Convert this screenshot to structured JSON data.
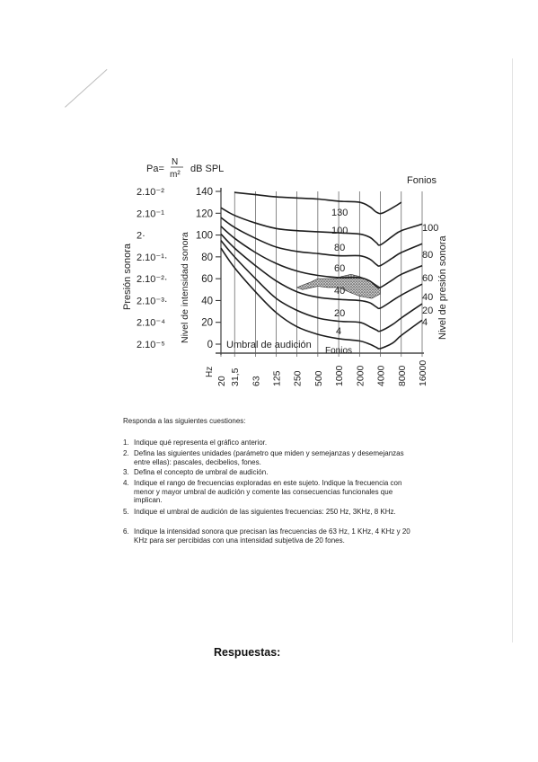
{
  "chart_data": {
    "type": "line",
    "units_label": {
      "pa": "Pa=",
      "n": "N",
      "m2": "m²",
      "dbspl": "dB SPL"
    },
    "left_axis_title": "Presión sonora",
    "left_pressure_ticks": [
      "2.10⁻²",
      "2.10⁻¹",
      "2·",
      "2.10⁻¹·",
      "2.10⁻²·",
      "2.10⁻³·",
      "2.10⁻⁴",
      "2.10⁻⁵"
    ],
    "ylabel": "Nivel de intensidad sonora",
    "y_ticks": [
      "140",
      "120",
      "100",
      "80",
      "60",
      "40",
      "20",
      "0"
    ],
    "ylim": [
      0,
      140
    ],
    "right_axis_title": "Nivel de presión sonora",
    "right_ticks": [
      "100",
      "80",
      "60",
      "40",
      "20",
      "4"
    ],
    "fonios_title": "Fonios",
    "x_unit": "Hz",
    "x_ticks": [
      "20",
      "31,5",
      "63",
      "125",
      "250",
      "500",
      "1000",
      "2000",
      "4000",
      "8000",
      "16000"
    ],
    "x_scale": "log",
    "contour_labels": [
      "130",
      "100",
      "80",
      "60",
      "40",
      "20",
      "4"
    ],
    "threshold_label": "Umbral de audición",
    "bottom_label": "Fonios",
    "speech_region": "stippled",
    "series": [
      {
        "label": "130",
        "points": [
          [
            31.5,
            139
          ],
          [
            63,
            137
          ],
          [
            125,
            135
          ],
          [
            250,
            134
          ],
          [
            500,
            133
          ],
          [
            1000,
            131
          ],
          [
            2000,
            130
          ],
          [
            2800,
            126
          ],
          [
            3500,
            121
          ],
          [
            4200,
            120
          ],
          [
            6000,
            125
          ],
          [
            8000,
            130
          ]
        ]
      },
      {
        "label": "100",
        "points": [
          [
            20,
            125
          ],
          [
            31.5,
            118
          ],
          [
            63,
            111
          ],
          [
            125,
            106
          ],
          [
            250,
            104
          ],
          [
            500,
            103
          ],
          [
            1000,
            102
          ],
          [
            2000,
            101
          ],
          [
            2800,
            98
          ],
          [
            3500,
            93
          ],
          [
            4000,
            91
          ],
          [
            6000,
            99
          ],
          [
            8000,
            104
          ],
          [
            16000,
            110
          ]
        ]
      },
      {
        "label": "80",
        "points": [
          [
            20,
            116
          ],
          [
            31.5,
            107
          ],
          [
            63,
            97
          ],
          [
            125,
            89
          ],
          [
            250,
            85
          ],
          [
            500,
            83
          ],
          [
            1000,
            81
          ],
          [
            2000,
            81
          ],
          [
            2800,
            78
          ],
          [
            3500,
            73
          ],
          [
            4000,
            72
          ],
          [
            6000,
            79
          ],
          [
            8000,
            84
          ],
          [
            16000,
            92
          ]
        ]
      },
      {
        "label": "60",
        "points": [
          [
            20,
            108
          ],
          [
            31.5,
            97
          ],
          [
            63,
            84
          ],
          [
            125,
            74
          ],
          [
            250,
            67
          ],
          [
            500,
            63
          ],
          [
            1000,
            61
          ],
          [
            2000,
            61
          ],
          [
            2800,
            58
          ],
          [
            3500,
            53
          ],
          [
            4000,
            52
          ],
          [
            6000,
            59
          ],
          [
            8000,
            64
          ],
          [
            16000,
            72
          ]
        ]
      },
      {
        "label": "40",
        "points": [
          [
            20,
            101
          ],
          [
            31.5,
            88
          ],
          [
            63,
            72
          ],
          [
            125,
            58
          ],
          [
            250,
            48
          ],
          [
            500,
            43
          ],
          [
            1000,
            41
          ],
          [
            2000,
            40
          ],
          [
            2800,
            38
          ],
          [
            3500,
            34
          ],
          [
            4000,
            33
          ],
          [
            6000,
            40
          ],
          [
            8000,
            45
          ],
          [
            16000,
            55
          ]
        ]
      },
      {
        "label": "20",
        "points": [
          [
            20,
            95
          ],
          [
            31.5,
            80
          ],
          [
            63,
            60
          ],
          [
            125,
            42
          ],
          [
            250,
            31
          ],
          [
            500,
            24
          ],
          [
            1000,
            21
          ],
          [
            2000,
            20
          ],
          [
            2800,
            16
          ],
          [
            3500,
            13
          ],
          [
            4000,
            12
          ],
          [
            6000,
            18
          ],
          [
            8000,
            24
          ],
          [
            16000,
            37
          ]
        ]
      },
      {
        "label": "4",
        "points": [
          [
            20,
            88
          ],
          [
            31.5,
            70
          ],
          [
            63,
            48
          ],
          [
            125,
            29
          ],
          [
            250,
            16
          ],
          [
            500,
            9
          ],
          [
            1000,
            5
          ],
          [
            2000,
            3
          ],
          [
            2800,
            0
          ],
          [
            3500,
            -3
          ],
          [
            4000,
            -4
          ],
          [
            6000,
            1
          ],
          [
            8000,
            8
          ],
          [
            16000,
            22
          ]
        ]
      }
    ],
    "speech_area": [
      [
        250,
        52
      ],
      [
        300,
        54
      ],
      [
        400,
        57
      ],
      [
        500,
        60
      ],
      [
        700,
        60
      ],
      [
        900,
        60
      ],
      [
        1100,
        62
      ],
      [
        1500,
        64
      ],
      [
        2000,
        62
      ],
      [
        3000,
        57
      ],
      [
        4000,
        52
      ],
      [
        4000,
        46
      ],
      [
        3000,
        42
      ],
      [
        2000,
        44
      ],
      [
        1500,
        47
      ],
      [
        1000,
        52
      ],
      [
        700,
        52
      ],
      [
        500,
        53
      ],
      [
        300,
        50
      ]
    ]
  },
  "questions": {
    "intro": "Responda a las siguientes cuestiones:",
    "items": [
      {
        "num": "1.",
        "text": "Indique qué representa el gráfico anterior."
      },
      {
        "num": "2.",
        "text": "Defina las siguientes unidades (parámetro que miden y semejanzas y desemejanzas entre ellas): pascales, decibelios, fones."
      },
      {
        "num": "3.",
        "text": "Defina el concepto de umbral de audición."
      },
      {
        "num": "4.",
        "text": "Indique el rango de frecuencias exploradas en este sujeto. Indique la frecuencia con menor y mayor umbral de audición y comente las consecuencias funcionales que implican."
      },
      {
        "num": "5.",
        "text": "Indique el umbral de audición de las siguientes frecuencias: 250 Hz, 3KHz, 8 KHz."
      },
      {
        "num": "6.",
        "text": "Indique la intensidad sonora que precisan las frecuencias de 63 Hz, 1 KHz, 4 KHz y 20 KHz para ser percibidas con una intensidad subjetiva de 20 fones."
      }
    ]
  },
  "answers_title": "Respuestas:"
}
